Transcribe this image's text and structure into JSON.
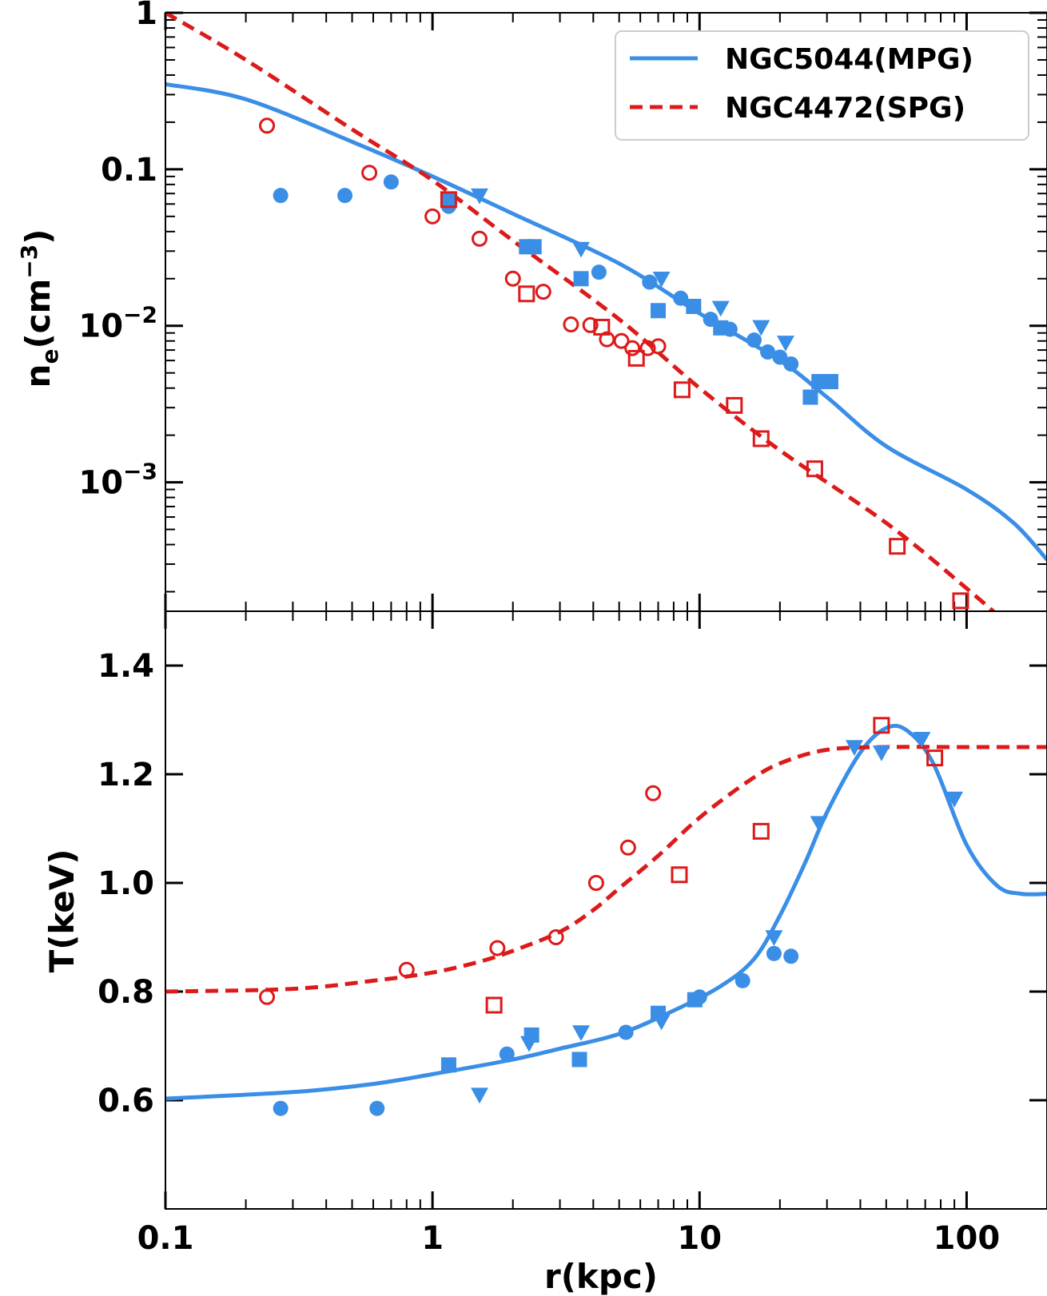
{
  "chart_data": [
    {
      "type": "scatter",
      "panel": "top",
      "xscale": "log",
      "yscale": "log",
      "xlim": [
        0.1,
        200
      ],
      "ylim": [
        0.00015,
        1
      ],
      "ylabel_main": "n",
      "ylabel_sub": "e",
      "ylabel_rest": "(cm",
      "ylabel_sup": "−3",
      "ylabel_end": ")",
      "xlabel": "",
      "yticks": [
        {
          "value": 1,
          "label": "1"
        },
        {
          "value": 0.1,
          "label": "0.1"
        },
        {
          "value": 0.01,
          "base": "10",
          "exp": "−2"
        },
        {
          "value": 0.001,
          "base": "10",
          "exp": "−3"
        }
      ],
      "legend": {
        "position": "top-right",
        "entries": [
          {
            "label": "NGC5044(MPG)",
            "color": "#3a8ee6",
            "dash": "solid"
          },
          {
            "label": "NGC4472(SPG)",
            "color": "#dd1a1a",
            "dash": "dashed"
          }
        ]
      },
      "curves": [
        {
          "name": "NGC5044(MPG)",
          "color": "#3a8ee6",
          "dash": "solid",
          "points": [
            [
              0.1,
              0.35
            ],
            [
              0.2,
              0.28
            ],
            [
              0.5,
              0.15
            ],
            [
              1,
              0.09
            ],
            [
              2,
              0.052
            ],
            [
              5,
              0.025
            ],
            [
              10,
              0.012
            ],
            [
              20,
              0.006
            ],
            [
              30,
              0.0035
            ],
            [
              50,
              0.0017
            ],
            [
              100,
              0.0009
            ],
            [
              150,
              0.00055
            ],
            [
              200,
              0.00032
            ]
          ]
        },
        {
          "name": "NGC4472(SPG)",
          "color": "#dd1a1a",
          "dash": "dashed",
          "points": [
            [
              0.1,
              1.0
            ],
            [
              0.2,
              0.5
            ],
            [
              0.5,
              0.18
            ],
            [
              1,
              0.085
            ],
            [
              2,
              0.035
            ],
            [
              5,
              0.011
            ],
            [
              10,
              0.004
            ],
            [
              20,
              0.0016
            ],
            [
              50,
              0.00055
            ],
            [
              100,
              0.00021
            ],
            [
              150,
              0.000115
            ]
          ]
        }
      ],
      "markers": [
        {
          "series": "NGC5044 circles",
          "shape": "circle",
          "filled": true,
          "color": "#3a8ee6",
          "points": [
            [
              0.27,
              0.068
            ],
            [
              0.47,
              0.068
            ],
            [
              0.7,
              0.083
            ],
            [
              1.15,
              0.058
            ],
            [
              4.2,
              0.022
            ],
            [
              6.5,
              0.019
            ],
            [
              8.5,
              0.015
            ],
            [
              11,
              0.011
            ],
            [
              13,
              0.0095
            ],
            [
              16,
              0.0081
            ],
            [
              18,
              0.0068
            ],
            [
              20,
              0.0063
            ],
            [
              22,
              0.0057
            ]
          ]
        },
        {
          "series": "NGC5044 squares",
          "shape": "square",
          "filled": true,
          "color": "#3a8ee6",
          "points": [
            [
              1.15,
              0.064
            ],
            [
              2.25,
              0.032
            ],
            [
              2.4,
              0.032
            ],
            [
              3.6,
              0.02
            ],
            [
              7,
              0.0125
            ],
            [
              9.5,
              0.0133
            ],
            [
              12,
              0.0097
            ],
            [
              26,
              0.0035
            ],
            [
              28,
              0.0044
            ],
            [
              31,
              0.0044
            ]
          ]
        },
        {
          "series": "NGC5044 triangles",
          "shape": "triangle",
          "filled": true,
          "color": "#3a8ee6",
          "points": [
            [
              1.5,
              0.068
            ],
            [
              3.6,
              0.031
            ],
            [
              7.2,
              0.02
            ],
            [
              12,
              0.013
            ],
            [
              17,
              0.0098
            ],
            [
              21,
              0.0078
            ]
          ]
        },
        {
          "series": "NGC4472 circles",
          "shape": "circle",
          "filled": false,
          "color": "#dd1a1a",
          "points": [
            [
              0.24,
              0.19
            ],
            [
              0.58,
              0.095
            ],
            [
              1,
              0.05
            ],
            [
              1.5,
              0.036
            ],
            [
              2,
              0.02
            ],
            [
              2.6,
              0.0165
            ],
            [
              3.3,
              0.0102
            ],
            [
              3.9,
              0.0101
            ],
            [
              4.5,
              0.0082
            ],
            [
              5.1,
              0.008
            ],
            [
              5.6,
              0.0072
            ],
            [
              6.4,
              0.0072
            ],
            [
              7,
              0.0074
            ]
          ]
        },
        {
          "series": "NGC4472 squares",
          "shape": "square",
          "filled": false,
          "color": "#dd1a1a",
          "points": [
            [
              1.15,
              0.064
            ],
            [
              2.25,
              0.016
            ],
            [
              4.3,
              0.0098
            ],
            [
              5.8,
              0.0062
            ],
            [
              8.6,
              0.0039
            ],
            [
              13.5,
              0.0031
            ],
            [
              17,
              0.0019
            ],
            [
              27,
              0.00122
            ],
            [
              55,
              0.00039
            ],
            [
              95,
              0.000175
            ]
          ]
        }
      ]
    },
    {
      "type": "scatter",
      "panel": "bottom",
      "xscale": "log",
      "yscale": "linear",
      "xlim": [
        0.1,
        200
      ],
      "ylim": [
        0.4,
        1.5
      ],
      "ylabel": "T(keV)",
      "xlabel": "r(kpc)",
      "xticks": [
        {
          "value": 0.1,
          "label": "0.1"
        },
        {
          "value": 1,
          "label": "1"
        },
        {
          "value": 10,
          "label": "10"
        },
        {
          "value": 100,
          "label": "100"
        }
      ],
      "yticks": [
        {
          "value": 0.6,
          "label": "0.6"
        },
        {
          "value": 0.8,
          "label": "0.8"
        },
        {
          "value": 1.0,
          "label": "1.0"
        },
        {
          "value": 1.2,
          "label": "1.2"
        },
        {
          "value": 1.4,
          "label": "1.4"
        }
      ],
      "curves": [
        {
          "name": "NGC5044(MPG)",
          "color": "#3a8ee6",
          "dash": "solid",
          "points": [
            [
              0.1,
              0.603
            ],
            [
              0.3,
              0.615
            ],
            [
              0.6,
              0.63
            ],
            [
              1,
              0.648
            ],
            [
              2,
              0.675
            ],
            [
              3,
              0.695
            ],
            [
              5,
              0.722
            ],
            [
              8,
              0.765
            ],
            [
              12,
              0.81
            ],
            [
              16,
              0.86
            ],
            [
              20,
              0.94
            ],
            [
              25,
              1.04
            ],
            [
              30,
              1.13
            ],
            [
              40,
              1.24
            ],
            [
              50,
              1.285
            ],
            [
              60,
              1.28
            ],
            [
              75,
              1.22
            ],
            [
              100,
              1.07
            ],
            [
              130,
              0.995
            ],
            [
              160,
              0.98
            ],
            [
              200,
              0.98
            ]
          ]
        },
        {
          "name": "NGC4472(SPG)",
          "color": "#dd1a1a",
          "dash": "dashed",
          "points": [
            [
              0.1,
              0.8
            ],
            [
              0.3,
              0.805
            ],
            [
              0.6,
              0.82
            ],
            [
              1,
              0.835
            ],
            [
              1.5,
              0.855
            ],
            [
              2,
              0.875
            ],
            [
              3,
              0.91
            ],
            [
              4,
              0.95
            ],
            [
              5,
              0.99
            ],
            [
              7,
              1.05
            ],
            [
              10,
              1.12
            ],
            [
              15,
              1.185
            ],
            [
              20,
              1.22
            ],
            [
              30,
              1.245
            ],
            [
              50,
              1.25
            ],
            [
              100,
              1.25
            ],
            [
              200,
              1.25
            ]
          ]
        }
      ],
      "markers": [
        {
          "series": "NGC5044 circles",
          "shape": "circle",
          "filled": true,
          "color": "#3a8ee6",
          "points": [
            [
              0.27,
              0.585
            ],
            [
              0.62,
              0.585
            ],
            [
              1.9,
              0.685
            ],
            [
              5.3,
              0.725
            ],
            [
              10,
              0.79
            ],
            [
              14.5,
              0.82
            ],
            [
              19,
              0.87
            ],
            [
              22,
              0.865
            ]
          ]
        },
        {
          "series": "NGC5044 squares",
          "shape": "square",
          "filled": true,
          "color": "#3a8ee6",
          "points": [
            [
              1.15,
              0.665
            ],
            [
              2.35,
              0.72
            ],
            [
              3.55,
              0.675
            ],
            [
              7,
              0.76
            ],
            [
              9.6,
              0.785
            ]
          ]
        },
        {
          "series": "NGC5044 triangles",
          "shape": "triangle",
          "filled": true,
          "color": "#3a8ee6",
          "points": [
            [
              1.5,
              0.61
            ],
            [
              2.3,
              0.705
            ],
            [
              3.6,
              0.725
            ],
            [
              7.2,
              0.745
            ],
            [
              19,
              0.9
            ],
            [
              28,
              1.11
            ],
            [
              38,
              1.25
            ],
            [
              48,
              1.24
            ],
            [
              68,
              1.265
            ],
            [
              90,
              1.155
            ]
          ]
        },
        {
          "series": "NGC4472 circles",
          "shape": "circle",
          "filled": false,
          "color": "#dd1a1a",
          "points": [
            [
              0.24,
              0.79
            ],
            [
              0.8,
              0.84
            ],
            [
              1.75,
              0.88
            ],
            [
              2.9,
              0.9
            ],
            [
              4.1,
              1.0
            ],
            [
              5.4,
              1.065
            ],
            [
              6.7,
              1.165
            ]
          ]
        },
        {
          "series": "NGC4472 squares",
          "shape": "square",
          "filled": false,
          "color": "#dd1a1a",
          "points": [
            [
              1.7,
              0.775
            ],
            [
              8.4,
              1.015
            ],
            [
              17,
              1.095
            ],
            [
              48,
              1.29
            ],
            [
              76,
              1.23
            ]
          ]
        }
      ]
    }
  ]
}
